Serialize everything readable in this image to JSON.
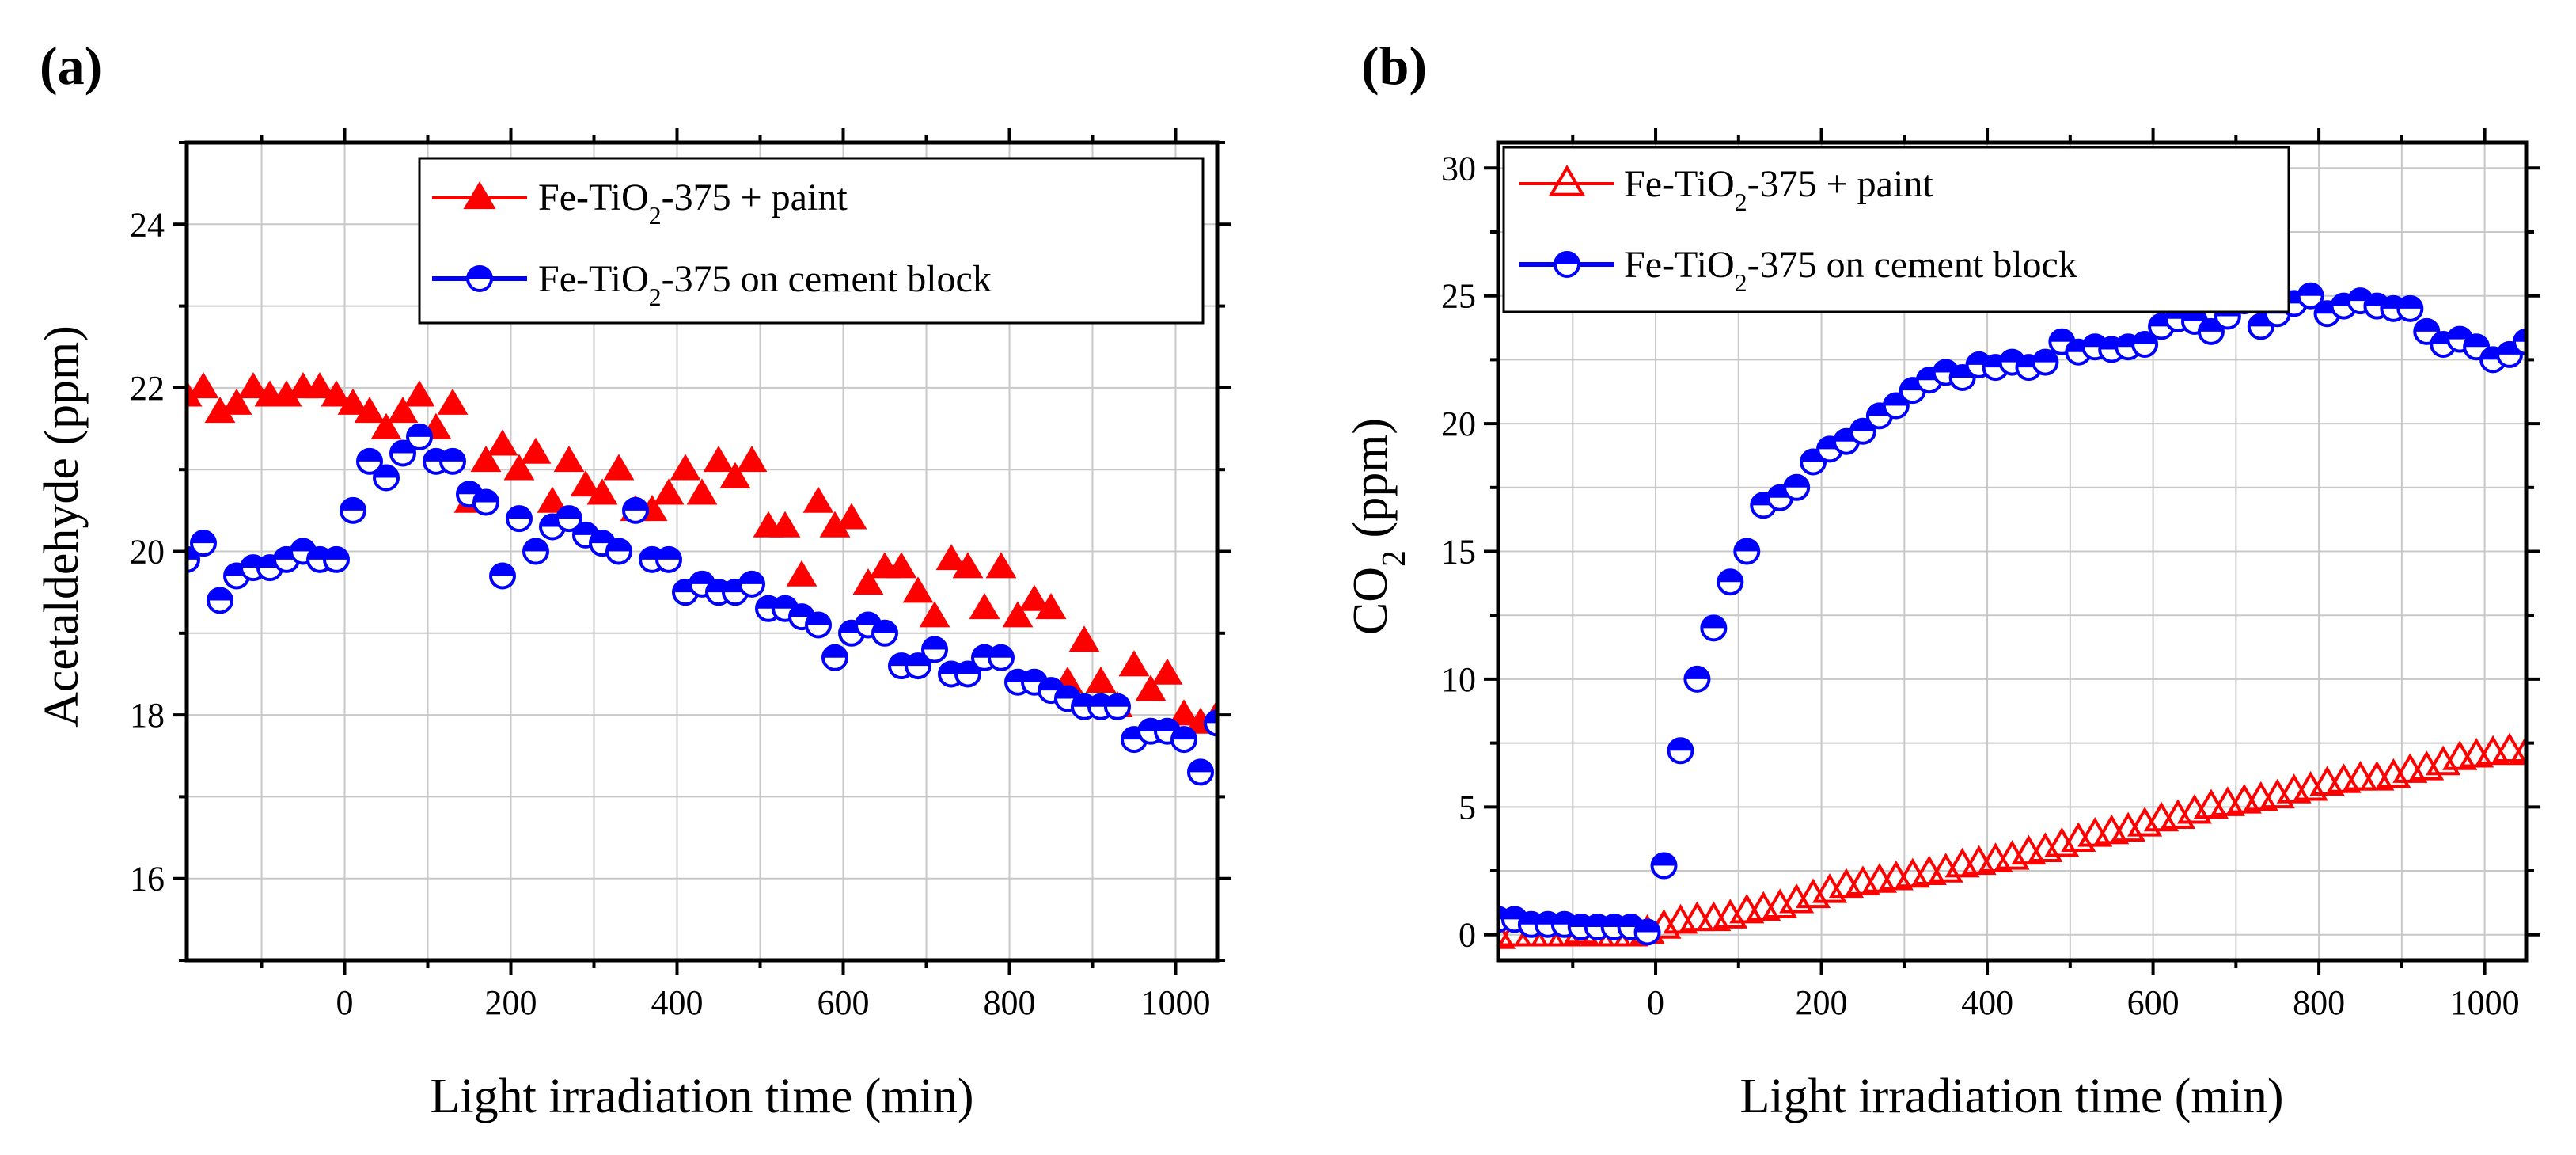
{
  "chart_data": [
    {
      "type": "scatter",
      "panel_label": "(a)",
      "xlabel": "Light irradiation time (min)",
      "ylabel": "Acetaldehyde (ppm)",
      "xlim": [
        -190,
        1050
      ],
      "ylim": [
        15,
        25
      ],
      "xticks": [
        0,
        200,
        400,
        600,
        800,
        1000
      ],
      "yticks": [
        16,
        18,
        20,
        22,
        24
      ],
      "xticklabels": [
        "0",
        "200",
        "400",
        "600",
        "800",
        "1000"
      ],
      "yticklabels": [
        "16",
        "18",
        "20",
        "22",
        "24"
      ],
      "grid": true,
      "legend_position": "top-right",
      "series": [
        {
          "name": "Fe-TiO₂-375 + paint",
          "legend_main": "Fe-TiO",
          "legend_sub": "2",
          "legend_rest": "-375 + paint",
          "marker": "triangle-filled",
          "color": "#ff0000",
          "x": [
            -190,
            -170,
            -150,
            -130,
            -110,
            -90,
            -70,
            -50,
            -30,
            -10,
            10,
            30,
            50,
            70,
            90,
            110,
            130,
            150,
            170,
            190,
            210,
            230,
            250,
            270,
            290,
            310,
            330,
            350,
            370,
            390,
            410,
            430,
            450,
            470,
            490,
            510,
            530,
            550,
            570,
            590,
            610,
            630,
            650,
            670,
            690,
            710,
            730,
            750,
            770,
            790,
            810,
            830,
            850,
            870,
            890,
            910,
            930,
            950,
            970,
            990,
            1010,
            1030,
            1050
          ],
          "y": [
            21.9,
            22.0,
            21.7,
            21.8,
            22.0,
            21.9,
            21.9,
            22.0,
            22.0,
            21.9,
            21.8,
            21.7,
            21.5,
            21.7,
            21.9,
            21.5,
            21.8,
            20.6,
            21.1,
            21.3,
            21.0,
            21.2,
            20.6,
            21.1,
            20.8,
            20.7,
            21.0,
            20.5,
            20.5,
            20.7,
            21.0,
            20.7,
            21.1,
            20.9,
            21.1,
            20.3,
            20.3,
            19.7,
            20.6,
            20.3,
            20.4,
            19.6,
            19.8,
            19.8,
            19.5,
            19.2,
            19.9,
            19.8,
            19.3,
            19.8,
            19.2,
            19.4,
            19.3,
            18.4,
            18.9,
            18.4,
            18.1,
            18.6,
            18.3,
            18.5,
            18.0,
            17.9,
            18.0
          ]
        },
        {
          "name": "Fe-TiO₂-375 on cement block",
          "legend_main": "Fe-TiO",
          "legend_sub": "2",
          "legend_rest": "-375 on cement block",
          "marker": "circle-half",
          "color": "#0000ff",
          "x": [
            -190,
            -170,
            -150,
            -130,
            -110,
            -90,
            -70,
            -50,
            -30,
            -10,
            10,
            30,
            50,
            70,
            90,
            110,
            130,
            150,
            170,
            190,
            210,
            230,
            250,
            270,
            290,
            310,
            330,
            350,
            370,
            390,
            410,
            430,
            450,
            470,
            490,
            510,
            530,
            550,
            570,
            590,
            610,
            630,
            650,
            670,
            690,
            710,
            730,
            750,
            770,
            790,
            810,
            830,
            850,
            870,
            890,
            910,
            930,
            950,
            970,
            990,
            1010,
            1030,
            1050
          ],
          "y": [
            19.9,
            20.1,
            19.4,
            19.7,
            19.8,
            19.8,
            19.9,
            20.0,
            19.9,
            19.9,
            20.5,
            21.1,
            20.9,
            21.2,
            21.4,
            21.1,
            21.1,
            20.7,
            20.6,
            19.7,
            20.4,
            20.0,
            20.3,
            20.4,
            20.2,
            20.1,
            20.0,
            20.5,
            19.9,
            19.9,
            19.5,
            19.6,
            19.5,
            19.5,
            19.6,
            19.3,
            19.3,
            19.2,
            19.1,
            18.7,
            19.0,
            19.1,
            19.0,
            18.6,
            18.6,
            18.8,
            18.5,
            18.5,
            18.7,
            18.7,
            18.4,
            18.4,
            18.3,
            18.2,
            18.1,
            18.1,
            18.1,
            17.7,
            17.8,
            17.8,
            17.7,
            17.3,
            17.9
          ]
        }
      ]
    },
    {
      "type": "scatter",
      "panel_label": "(b)",
      "xlabel": "Light irradiation time (min)",
      "ylabel_main": "CO",
      "ylabel_sub": "2",
      "ylabel_rest": " (ppm)",
      "xlim": [
        -190,
        1050
      ],
      "ylim": [
        -1,
        31
      ],
      "xticks": [
        0,
        200,
        400,
        600,
        800,
        1000
      ],
      "yticks": [
        0,
        5,
        10,
        15,
        20,
        25,
        30
      ],
      "xticklabels": [
        "0",
        "200",
        "400",
        "600",
        "800",
        "1000"
      ],
      "yticklabels": [
        "0",
        "5",
        "10",
        "15",
        "20",
        "25",
        "30"
      ],
      "grid": true,
      "legend_position": "top-left",
      "series": [
        {
          "name": "Fe-TiO₂-375 + paint",
          "legend_main": "Fe-TiO",
          "legend_sub": "2",
          "legend_rest": "-375 + paint",
          "marker": "triangle-open",
          "color": "#ff0000",
          "x": [
            -190,
            -170,
            -150,
            -130,
            -110,
            -90,
            -70,
            -50,
            -30,
            -10,
            10,
            30,
            50,
            70,
            90,
            110,
            130,
            150,
            170,
            190,
            210,
            230,
            250,
            270,
            290,
            310,
            330,
            350,
            370,
            390,
            410,
            430,
            450,
            470,
            490,
            510,
            530,
            550,
            570,
            590,
            610,
            630,
            650,
            670,
            690,
            710,
            730,
            750,
            770,
            790,
            810,
            830,
            850,
            870,
            890,
            910,
            930,
            950,
            970,
            990,
            1010,
            1030,
            1050
          ],
          "y": [
            -0.1,
            0.0,
            0.0,
            0.0,
            0.0,
            0.1,
            0.0,
            0.0,
            0.0,
            0.1,
            0.3,
            0.5,
            0.6,
            0.6,
            0.7,
            0.9,
            1.0,
            1.1,
            1.3,
            1.5,
            1.7,
            1.9,
            2.0,
            2.1,
            2.2,
            2.3,
            2.4,
            2.5,
            2.7,
            2.8,
            2.9,
            3.0,
            3.2,
            3.3,
            3.5,
            3.7,
            3.9,
            4.0,
            4.1,
            4.3,
            4.5,
            4.6,
            4.8,
            5.0,
            5.1,
            5.2,
            5.3,
            5.4,
            5.6,
            5.7,
            5.9,
            6.0,
            6.1,
            6.1,
            6.2,
            6.4,
            6.5,
            6.7,
            6.9,
            7.0,
            7.1,
            7.2,
            7.1
          ]
        },
        {
          "name": "Fe-TiO₂-375 on cement block",
          "legend_main": "Fe-TiO",
          "legend_sub": "2",
          "legend_rest": "-375 on cement block",
          "marker": "circle-half",
          "color": "#0000ff",
          "x": [
            -190,
            -170,
            -150,
            -130,
            -110,
            -90,
            -70,
            -50,
            -30,
            -10,
            10,
            30,
            50,
            70,
            90,
            110,
            130,
            150,
            170,
            190,
            210,
            230,
            250,
            270,
            290,
            310,
            330,
            350,
            370,
            390,
            410,
            430,
            450,
            470,
            490,
            510,
            530,
            550,
            570,
            590,
            610,
            630,
            650,
            670,
            690,
            710,
            730,
            750,
            770,
            790,
            810,
            830,
            850,
            870,
            890,
            910,
            930,
            950,
            970,
            990,
            1010,
            1030,
            1050
          ],
          "y": [
            0.6,
            0.6,
            0.4,
            0.4,
            0.4,
            0.3,
            0.3,
            0.3,
            0.3,
            0.1,
            2.7,
            7.2,
            10.0,
            12.0,
            13.8,
            15.0,
            16.8,
            17.1,
            17.5,
            18.5,
            19.0,
            19.3,
            19.7,
            20.3,
            20.7,
            21.3,
            21.7,
            22.0,
            21.8,
            22.3,
            22.2,
            22.4,
            22.2,
            22.4,
            23.2,
            22.8,
            23.0,
            22.9,
            23.0,
            23.1,
            23.8,
            24.1,
            24.0,
            23.6,
            24.2,
            24.8,
            23.8,
            24.3,
            24.7,
            25.0,
            24.3,
            24.6,
            24.8,
            24.6,
            24.5,
            24.5,
            23.6,
            23.1,
            23.3,
            23.0,
            22.5,
            22.7,
            23.2
          ]
        }
      ]
    }
  ]
}
